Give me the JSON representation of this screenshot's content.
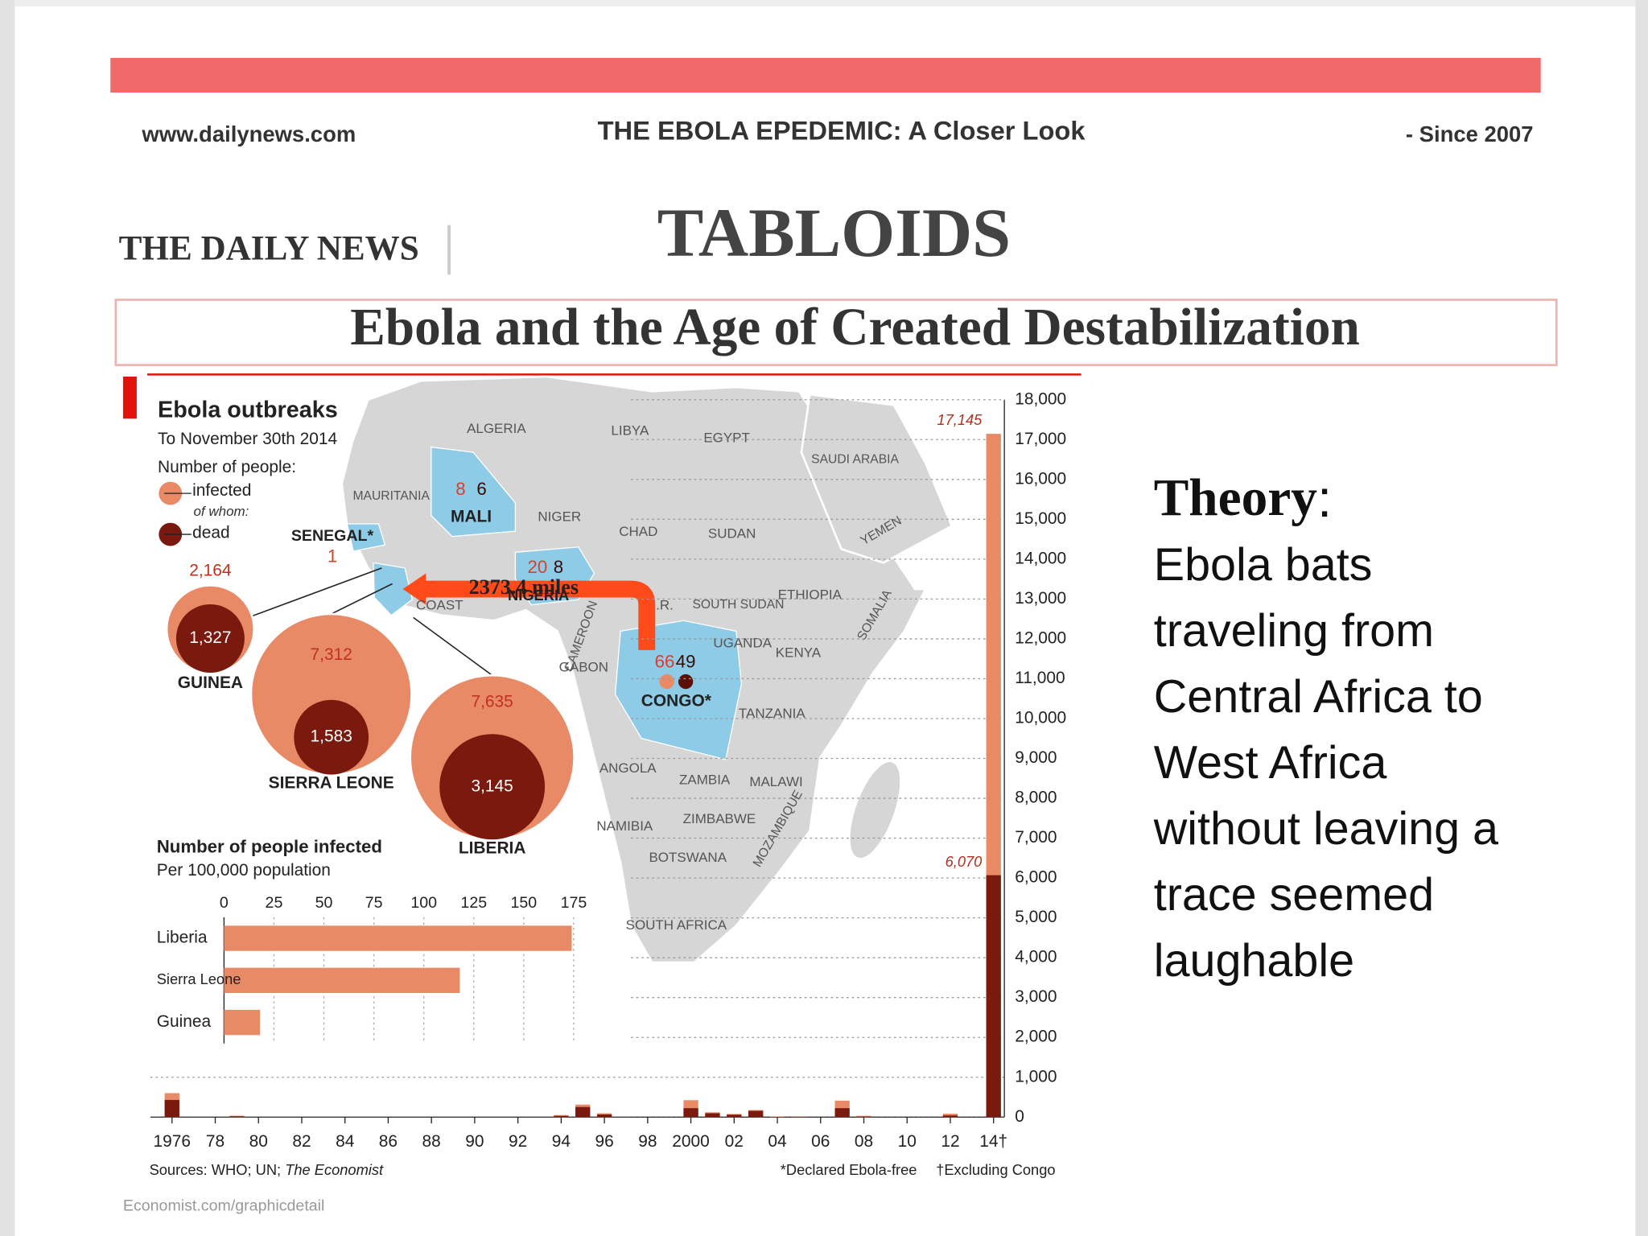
{
  "header": {
    "website": "www.dailynews.com",
    "headline": "THE EBOLA EPEDEMIC: A Closer Look",
    "since": "- Since 2007",
    "masthead": "THE DAILY NEWS",
    "section": "TABLOIDS",
    "title": "Ebola and the Age of Created Destabilization"
  },
  "infographic": {
    "title": "Ebola outbreaks",
    "subtitle": "To November 30th 2014",
    "outbreaks": [
      {
        "country": "GUINEA",
        "infected": 2164,
        "infected_label": "2,164",
        "dead": 1327,
        "dead_label": "1,327"
      },
      {
        "country": "SIERRA LEONE",
        "infected": 7312,
        "infected_label": "7,312",
        "dead": 1583,
        "dead_label": "1,583"
      },
      {
        "country": "LIBERIA",
        "infected": 7635,
        "infected_label": "7,635",
        "dead": 3145,
        "dead_label": "3,145"
      }
    ],
    "map_labels": [
      "ALGERIA",
      "LIBYA",
      "EGYPT",
      "SAUDI ARABIA",
      "MAURITANIA",
      "MALI",
      "NIGER",
      "CHAD",
      "SUDAN",
      "YEMEN",
      "SENEGAL*",
      "NIGERIA",
      "COAST",
      ".R.",
      "SOUTH SUDAN",
      "ETHIOPIA",
      "SOMALIA",
      "CAMEROON",
      "GABON",
      "CONGO*",
      "UGANDA",
      "KENYA",
      "TANZANIA",
      "ANGOLA",
      "ZAMBIA",
      "MALAWI",
      "NAMIBIA",
      "ZIMBABWE",
      "MOZAMBIQUE",
      "BOTSWANA",
      "SOUTH AFRICA"
    ],
    "map_counts": [
      {
        "infected": 8,
        "dead": 6
      },
      {
        "infected": 1
      },
      {
        "infected": 20,
        "dead": 8
      },
      {
        "infected": 66,
        "dead": 49
      }
    ],
    "distance_label": "2373.4 miles",
    "sources": "Sources: WHO; UN;",
    "sources_italic": "The Economist",
    "note_declared": "*Declared Ebola-free",
    "note_excluding": "†Excluding Congo",
    "footer_url": "Economist.com/graphicdetail"
  },
  "chart_data": [
    {
      "type": "hbar",
      "title": "Number of people infected",
      "subtitle": "Per 100,000 population",
      "categories": [
        "Liberia",
        "Sierra Leone",
        "Guinea"
      ],
      "values": [
        174,
        118,
        18
      ],
      "color": "#e98a67",
      "xlim": [
        0,
        180
      ],
      "xticks": [
        0,
        25,
        50,
        75,
        100,
        125,
        150,
        175
      ],
      "grid": true
    },
    {
      "type": "bar",
      "legend_title": "Number of people:",
      "legend_note": "of whom:",
      "x": [
        1976,
        1979,
        1994,
        1995,
        1996,
        2000,
        2001,
        2002,
        2003,
        2004,
        2005,
        2007,
        2008,
        2012,
        2014
      ],
      "series": [
        {
          "name": "infected",
          "color": "#e98a67",
          "values": [
            602,
            34,
            52,
            315,
            97,
            425,
            122,
            80,
            178,
            17,
            12,
            413,
            32,
            86,
            17145
          ],
          "value_labels": [
            null,
            null,
            null,
            null,
            null,
            null,
            null,
            null,
            null,
            null,
            null,
            null,
            null,
            null,
            "17,145"
          ]
        },
        {
          "name": "dead",
          "color": "#7a1a0e",
          "values": [
            431,
            22,
            31,
            254,
            66,
            224,
            96,
            60,
            157,
            7,
            10,
            224,
            15,
            41,
            6070
          ],
          "value_labels": [
            null,
            null,
            null,
            null,
            null,
            null,
            null,
            null,
            null,
            null,
            null,
            null,
            null,
            null,
            "6,070"
          ]
        }
      ],
      "xlim": [
        1975,
        2014.5
      ],
      "xticks": [
        {
          "value": 1976,
          "label": "1976"
        },
        {
          "value": 1978,
          "label": "78"
        },
        {
          "value": 1980,
          "label": "80"
        },
        {
          "value": 1982,
          "label": "82"
        },
        {
          "value": 1984,
          "label": "84"
        },
        {
          "value": 1986,
          "label": "86"
        },
        {
          "value": 1988,
          "label": "88"
        },
        {
          "value": 1990,
          "label": "90"
        },
        {
          "value": 1992,
          "label": "92"
        },
        {
          "value": 1994,
          "label": "94"
        },
        {
          "value": 1996,
          "label": "96"
        },
        {
          "value": 1998,
          "label": "98"
        },
        {
          "value": 2000,
          "label": "2000"
        },
        {
          "value": 2002,
          "label": "02"
        },
        {
          "value": 2004,
          "label": "04"
        },
        {
          "value": 2006,
          "label": "06"
        },
        {
          "value": 2008,
          "label": "08"
        },
        {
          "value": 2010,
          "label": "10"
        },
        {
          "value": 2012,
          "label": "12"
        },
        {
          "value": 2014,
          "label": "14†"
        }
      ],
      "ylim": [
        0,
        18000
      ],
      "yticks": [
        0,
        {
          "value": 1000,
          "label": "1,000"
        },
        {
          "value": 2000,
          "label": "2,000"
        },
        {
          "value": 3000,
          "label": "3,000"
        },
        {
          "value": 4000,
          "label": "4,000"
        },
        {
          "value": 5000,
          "label": "5,000"
        },
        {
          "value": 6000,
          "label": "6,000"
        },
        {
          "value": 7000,
          "label": "7,000"
        },
        {
          "value": 8000,
          "label": "8,000"
        },
        {
          "value": 9000,
          "label": "9,000"
        },
        {
          "value": 10000,
          "label": "10,000"
        },
        {
          "value": 11000,
          "label": "11,000"
        },
        {
          "value": 12000,
          "label": "12,000"
        },
        {
          "value": 13000,
          "label": "13,000"
        },
        {
          "value": 14000,
          "label": "14,000"
        },
        {
          "value": 15000,
          "label": "15,000"
        },
        {
          "value": 16000,
          "label": "16,000"
        },
        {
          "value": 17000,
          "label": "17,000"
        },
        {
          "value": 18000,
          "label": "18,000"
        }
      ],
      "yaxis_side": "right",
      "grid": true
    }
  ],
  "theory": {
    "heading": "Theory",
    "punct": ":",
    "lines": [
      "Ebola bats",
      "traveling from",
      "Central Africa to",
      "West Africa",
      "without leaving a",
      "trace seemed",
      "laughable"
    ]
  }
}
